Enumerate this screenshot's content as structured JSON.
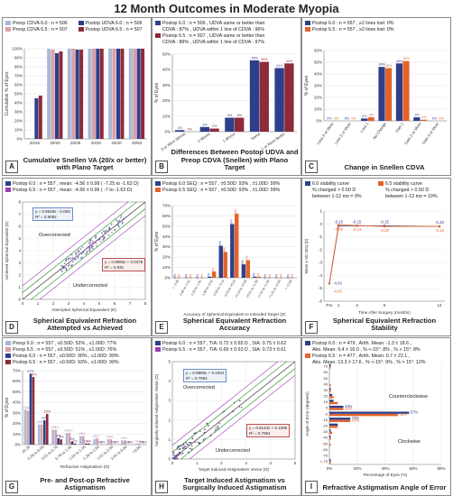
{
  "figure_title": "12 Month Outcomes in Moderate Myopia",
  "colors": {
    "lightblue": "#a9b8d8",
    "pink": "#d9a0a6",
    "navy": "#2e3f8a",
    "maroon": "#8e2a3a",
    "orange": "#e4632b",
    "gray": "#bdbdbd",
    "green": "#3a9a3a",
    "purple": "#9b3db5"
  },
  "panels": {
    "A": {
      "letter": "A",
      "caption": "Cumulative Snellen VA (20/x or better) with Plano Target",
      "legend": [
        {
          "text": "Preop CDVA 6.0 : n = 506",
          "color": "#a9b8d8"
        },
        {
          "text": "Preop CDVA 6.5 : n = 507",
          "color": "#d9a0a6"
        },
        {
          "text": "Postop UDVA 6.0 : n = 506",
          "color": "#2e3f8a"
        },
        {
          "text": "Postop UDVA 6.5 : n = 507",
          "color": "#8e2a3a"
        }
      ],
      "chart_data": {
        "type": "bar",
        "categories": [
          "20/16",
          "20/20",
          "20/25",
          "20/32",
          "20/40",
          "20/63"
        ],
        "ylabel": "Cumulative % of Eyes",
        "ylim": [
          0,
          100
        ],
        "yticks": [
          "0%",
          "10%",
          "20%",
          "30%",
          "40%",
          "50%",
          "60%",
          "70%",
          "80%",
          "90%",
          "100%"
        ],
        "series": [
          {
            "name": "Preop CDVA 6.0",
            "values": [
              1,
              100,
              100,
              100,
              100,
              100
            ]
          },
          {
            "name": "Preop CDVA 6.5",
            "values": [
              0,
              99,
              100,
              100,
              100,
              100
            ]
          },
          {
            "name": "Postop UDVA 6.0",
            "values": [
              45,
              95,
              99,
              100,
              100,
              100
            ]
          },
          {
            "name": "Postop UDVA 6.5",
            "values": [
              48,
              97,
              99,
              100,
              100,
              100
            ]
          }
        ]
      }
    },
    "B": {
      "letter": "B",
      "caption": "Differences Between Postop UDVA and Preop CDVA (Snellen) with Plano Target",
      "legend": [
        {
          "text": "Postop 6.0 : n = 506 , UDVA same or better than",
          "color": "#2e3f8a"
        },
        {
          "text": "CDVA : 87% , UDVA within 1 line of CDVA : 96%",
          "color": null
        },
        {
          "text": "Postop 6.5 : n = 507 , UDVA same or better than",
          "color": "#8e2a3a"
        },
        {
          "text": "CDVA : 89% , UDVA within 1 line of CDVA : 97%",
          "color": null
        }
      ],
      "chart_data": {
        "type": "bar",
        "categories": [
          "3 or More Worse",
          "2 Worse",
          "1 Worse",
          "Same",
          "1 or More Better"
        ],
        "ylabel": "% of Eyes",
        "ylim": [
          0,
          50
        ],
        "yticks": [
          "0%",
          "10%",
          "20%",
          "30%",
          "40%",
          "50%"
        ],
        "series": [
          {
            "name": "Postop 6.0",
            "values": [
              1,
              3,
              9,
              46,
              41
            ]
          },
          {
            "name": "Postop 6.5",
            "values": [
              0,
              2,
              9,
              45,
              44
            ]
          }
        ]
      }
    },
    "C": {
      "letter": "C",
      "caption": "Change in Snellen CDVA",
      "legend": [
        {
          "text": "Postop 6.0 : n = 557 , ≥2 lines lost: 0%",
          "color": "#2e3f8a"
        },
        {
          "text": "Postop 6.5 : n = 557 , ≥2 lines lost: 0%",
          "color": "#e4632b"
        }
      ],
      "chart_data": {
        "type": "bar",
        "categories": [
          "Loss 3 or More",
          "Loss 2 or More",
          "Loss 1",
          "No Change",
          "Gain 1",
          "Gain 2 or More",
          "Gain 3 or More"
        ],
        "ylabel": "% of Eyes",
        "ylim": [
          0,
          60
        ],
        "yticks": [
          "0%",
          "10%",
          "20%",
          "30%",
          "40%",
          "50%",
          "60%"
        ],
        "series": [
          {
            "name": "Postop 6.0",
            "values": [
              0,
              0,
              2,
              46,
              49,
              3,
              0
            ]
          },
          {
            "name": "Postop 6.5",
            "values": [
              0,
              0,
              3,
              45,
              51,
              1,
              0
            ]
          }
        ]
      }
    },
    "D": {
      "letter": "D",
      "caption": "Spherical Equivalent Refraction Attempted vs Achieved",
      "legend": [
        {
          "text": "Postop 6.0 : n = 557 , mean: -4.56 ± 0.98 ( -7.25 to -1.63 D)",
          "color": "#2e3f8a"
        },
        {
          "text": "Postop 6.5 : n = 557 , mean: -4.56 ± 0.96 ( -7 to -1.63 D)",
          "color": "#9b3db5"
        }
      ],
      "overcorrected": "Overcorrected",
      "undercorrected": "Undercorrected",
      "eq1": "y = 0.9648x - 0.053",
      "r1": "R² = 0.9092",
      "eq2": "y = 0.9993x + 0.0479",
      "r2": "R² = 0.931",
      "chart_data": {
        "type": "scatter",
        "xlabel": "Attempted Spherical Equivalent (D)",
        "ylabel": "Achieved Spherical Equivalent (D)",
        "xlim": [
          0,
          8
        ],
        "ylim": [
          0,
          8
        ],
        "ticks": [
          "0",
          "1",
          "2",
          "3",
          "4",
          "5",
          "6",
          "7",
          "8"
        ]
      }
    },
    "E": {
      "letter": "E",
      "caption": "Spherical Equivalent Refraction Accuracy",
      "legend": [
        {
          "text": "Postop 6.0 SEQ : n = 557 , ±0.50D: 93% , ±1.00D: 99%",
          "color": "#2e3f8a"
        },
        {
          "text": "Postop 6.5 SEQ : n = 557 , ±0.50D: 93% , ±1.00D: 99%",
          "color": "#e4632b"
        }
      ],
      "chart_data": {
        "type": "bar",
        "categories": [
          "< -2.00",
          "-2.00 to -1.51",
          "-1.50 to -1.01",
          "-1.00 to -0.51",
          "-0.50 to -0.14",
          "-0.13 to +0.13",
          "+0.14 to +0.50",
          "+0.51 to +1.00",
          "+1.01 to +1.50",
          "+1.51 to +2.00",
          "> +2.00"
        ],
        "xlabel": "Accuracy of Spherical Equivalent to Intended Target (D)",
        "ylabel": "% of Eyes",
        "ylim": [
          0,
          70
        ],
        "yticks": [
          "0%",
          "10%",
          "20%",
          "30%",
          "40%",
          "50%",
          "60%",
          "70%"
        ],
        "series": [
          {
            "name": "Postop 6.0 SEQ",
            "values": [
              0,
              0,
              0,
              1,
              31,
              52,
              13,
              1,
              0,
              0,
              0
            ]
          },
          {
            "name": "Postop 6.5 SEQ",
            "values": [
              0,
              0,
              0,
              6,
              25,
              62,
              17,
              1,
              0,
              0,
              0
            ]
          }
        ]
      }
    },
    "F": {
      "letter": "F",
      "caption": "Spherical Equivalent Refraction Stability",
      "legend": [
        {
          "text": "6.0 stability curve",
          "color": "#2e3f8a"
        },
        {
          "text": "% changed > 0.50 D",
          "color": null
        },
        {
          "text": "between 1-12 mo = 9%",
          "color": null
        },
        {
          "text": "6.5 stability curve",
          "color": "#e4632b"
        },
        {
          "text": "% changed > 0.50 D",
          "color": null
        },
        {
          "text": "between 1-12 mo = 10%",
          "color": null
        }
      ],
      "chart_data": {
        "type": "line",
        "categories": [
          "Pre",
          "1",
          "3",
          "6",
          "12"
        ],
        "xlabel": "Time After Surgery (months)",
        "ylabel": "Mean ± SD SEQ (D)",
        "ylim": [
          -6,
          1
        ],
        "yticks": [
          "1",
          "0",
          "-1",
          "-2",
          "-3",
          "-4",
          "-5",
          "-6"
        ],
        "series": [
          {
            "name": "6.0",
            "values": [
              -4.63,
              -0.15,
              -0.15,
              -0.15,
              -0.2
            ],
            "labels": [
              "-4.63",
              "-0.15",
              "-0.15",
              "-0.15",
              "-0.20"
            ]
          },
          {
            "name": "6.5",
            "values": [
              -4.63,
              -0.09,
              -0.13,
              -0.2,
              -0.18
            ],
            "labels": [
              "-4.63",
              "-0.09",
              "-0.13",
              "-0.20",
              "-0.18"
            ]
          }
        ]
      }
    },
    "G": {
      "letter": "G",
      "caption": "Pre- and Post-op Refractive Astigmatism",
      "legend": [
        {
          "text": "Preop 6.0 : n = 557 , ≤0.50D: 52% , ≤1.00D: 77%",
          "color": "#a9b8d8"
        },
        {
          "text": "Preop 6.5 : n = 557 , ≤0.50D: 51% , ≤1.00D: 76%",
          "color": "#d9a0a6"
        },
        {
          "text": "Postop 6.0 : n = 557 , ≤0.50D: 90% , ≤1.00D: 99%",
          "color": "#2e3f8a"
        },
        {
          "text": "Postop 6.5 : n = 557 , ≤0.50D: 93% , ≤1.00D: 99%",
          "color": "#8e2a3a"
        }
      ],
      "chart_data": {
        "type": "bar",
        "categories": [
          "≤0.25",
          "0.26 to 0.50",
          "0.51 to 0.75",
          "0.76 to 1.00",
          "1.01 to 1.25",
          "1.26 to 1.50",
          "1.51 to 2.00",
          "2.01 to 3.00",
          ">3.00"
        ],
        "xlabel": "Refractive Astigmatism (D)",
        "ylabel": "% of Eyes",
        "ylim": [
          0,
          70
        ],
        "yticks": [
          "0%",
          "10%",
          "20%",
          "30%",
          "40%",
          "50%",
          "60%",
          "70%"
        ],
        "series": [
          {
            "name": "Preop 6.0",
            "values": [
              33,
              19,
              14,
              11,
              8,
              5,
              5,
              4,
              1
            ]
          },
          {
            "name": "Preop 6.5",
            "values": [
              32,
              19,
              14,
              11,
              8,
              6,
              5,
              4,
              1
            ]
          },
          {
            "name": "Postop 6.0",
            "values": [
              67,
              23,
              6,
              3,
              1,
              0,
              0,
              0,
              0
            ]
          },
          {
            "name": "Postop 6.5",
            "values": [
              64,
              29,
              5,
              1,
              1,
              0,
              0,
              0,
              0
            ]
          }
        ]
      }
    },
    "H": {
      "letter": "H",
      "caption": "Target Induced Astigmatism vs Surgically Induced Astigmatism",
      "legend": [
        {
          "text": "Postop 6.0 : n = 557 , TIA: 0.72 ± 0.65 D , SIA: 0.75 ± 0.62",
          "color": "#2e3f8a"
        },
        {
          "text": "Postop 6.5 : n = 557 , TIA: 0.69 ± 0.63 D , SIA: 0.73 ± 0.61",
          "color": "#9b3db5"
        }
      ],
      "overcorrected": "Overcorrected",
      "undercorrected": "Undercorrected",
      "eq1": "y = 0.9889x + 0.1004",
      "r1": "R² = 0.7954",
      "eq2": "y = 0.9143x + 0.1095",
      "r2": "R² = 0.7954",
      "chart_data": {
        "type": "scatter",
        "xlabel": "Target Induced Astigmatism Vector (D)",
        "ylabel": "Surgically Induced Astigmatism Vector (D)",
        "xlim": [
          0,
          5
        ],
        "ylim": [
          0,
          5
        ],
        "ticks": [
          "0",
          "1",
          "2",
          "3",
          "4",
          "5"
        ]
      }
    },
    "I": {
      "letter": "I",
      "caption": "Refractive Astigmatism Angle of Error",
      "legend": [
        {
          "text": "Postop 6.0 : n = 479 , Arith. Mean: -1.3 ± 18.6 ,",
          "color": "#2e3f8a"
        },
        {
          "text": "Abs. Mean: 9.4 ± 16.0 , % <-15°: 8% , % > 15°: 8%",
          "color": null
        },
        {
          "text": "Postop 6.5 : n = 477 , Arith. Mean: 0.7 ± 22.1 ,",
          "color": "#e4632b"
        },
        {
          "text": "Abs. Mean: 13.3 ± 17.6 , % <-15°: 9% , % > 15°: 12%",
          "color": null
        }
      ],
      "counterclockwise": "Counterclockwise",
      "clockwise": "Clockwise",
      "chart_data": {
        "type": "bar",
        "orientation": "horizontal",
        "categories": [
          ">75",
          "65 to 75",
          "55 to 65",
          "45 to 55",
          "35 to 45",
          "25 to 35",
          "15 to 25",
          "5 to 15",
          "-5 to 5",
          "-15 to -5",
          "-25 to -15",
          "-35 to -25",
          "-45 to -35",
          "-55 to -45",
          "-65 to -55",
          "-75 to -65",
          "< -75"
        ],
        "ytick_labels": [
          "75",
          "65",
          "55",
          "45",
          "35",
          "25",
          "15",
          "5",
          "-5",
          "-15",
          "-25",
          "-35",
          "-45",
          "-55",
          "-65",
          "-75",
          "<-75"
        ],
        "xlabel": "Percentage of Eyes (%)",
        "ylabel": "Angle of Error (degrees)",
        "xlim": [
          0,
          80
        ],
        "xticks": [
          "0%",
          "20%",
          "40%",
          "60%",
          "80%"
        ],
        "series": [
          {
            "name": "Postop 6.0",
            "values": [
              1,
              0,
              0,
              0,
              1,
              2,
              3,
              10,
              57,
              15,
              6,
              1,
              1,
              0,
              0,
              0,
              1
            ]
          },
          {
            "name": "Postop 6.5",
            "values": [
              1,
              0,
              0,
              1,
              1,
              3,
              6,
              10,
              49,
              15,
              6,
              2,
              1,
              1,
              0,
              0,
              1
            ]
          }
        ]
      }
    }
  }
}
